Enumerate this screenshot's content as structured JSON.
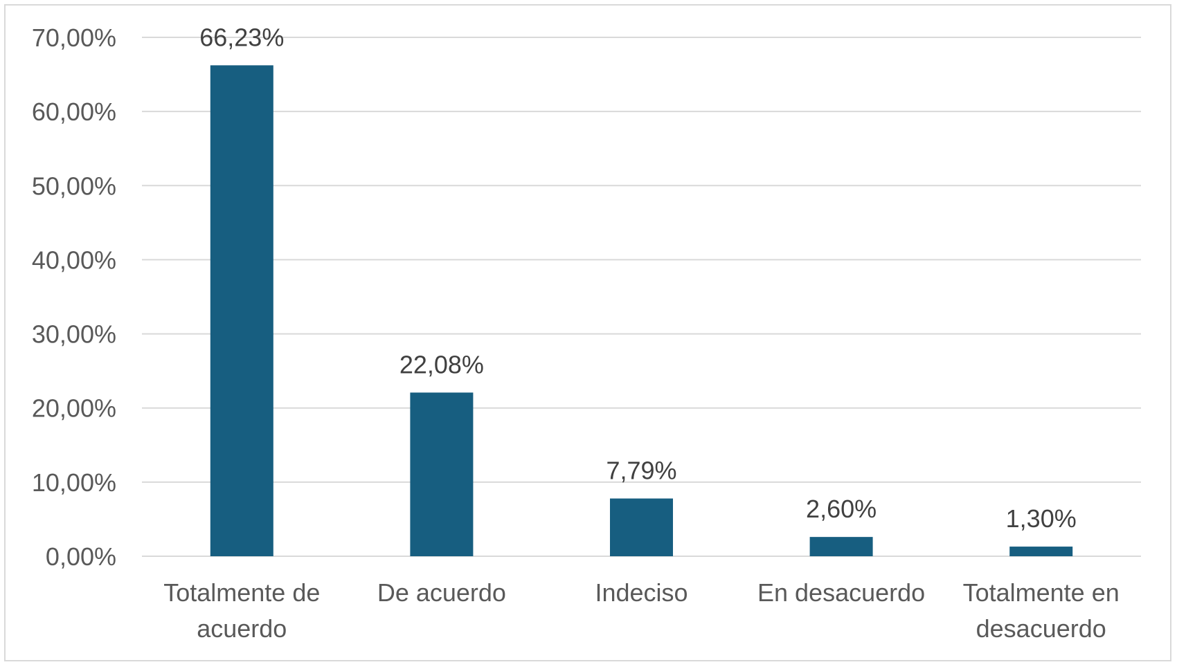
{
  "chart_data": {
    "type": "bar",
    "categories": [
      [
        "Totalmente de",
        "acuerdo"
      ],
      [
        "De acuerdo"
      ],
      [
        "Indeciso"
      ],
      [
        "En desacuerdo"
      ],
      [
        "Totalmente en",
        "desacuerdo"
      ]
    ],
    "values": [
      66.23,
      22.08,
      7.79,
      2.6,
      1.3
    ],
    "data_labels": [
      "66,23%",
      "22,08%",
      "7,79%",
      "2,60%",
      "1,30%"
    ],
    "y_ticks": [
      0,
      10,
      20,
      30,
      40,
      50,
      60,
      70
    ],
    "y_tick_labels": [
      "0,00%",
      "10,00%",
      "20,00%",
      "30,00%",
      "40,00%",
      "50,00%",
      "60,00%",
      "70,00%"
    ],
    "ylim": [
      0,
      70
    ],
    "grid": true,
    "legend": "none",
    "title": "",
    "xlabel": "",
    "ylabel": "",
    "colors": {
      "bar": "#175E80",
      "grid": "#d9d9d9",
      "axis_text": "#595959",
      "data_label_text": "#404040"
    }
  }
}
